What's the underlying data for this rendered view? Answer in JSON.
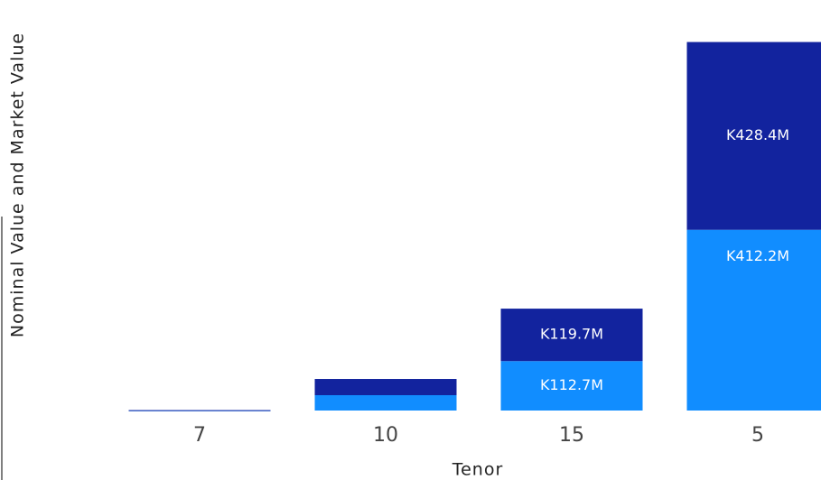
{
  "chart_data": {
    "type": "stacked_bar",
    "y_label": "Nominal Value and Market Value",
    "x_label": "Tenor",
    "categories": [
      "7",
      "10",
      "15",
      "5"
    ],
    "series": [
      {
        "color": "#118dff",
        "values": [
          0.5,
          35,
          112.7,
          412.2
        ],
        "value_labels": [
          null,
          null,
          "K112.7M",
          "K412.2M"
        ]
      },
      {
        "color": "#12239e",
        "values": [
          0.5,
          37,
          119.7,
          428.4
        ],
        "value_labels": [
          null,
          null,
          "K119.7M",
          "K428.4M"
        ]
      }
    ],
    "ylim": [
      0,
      850
    ]
  }
}
